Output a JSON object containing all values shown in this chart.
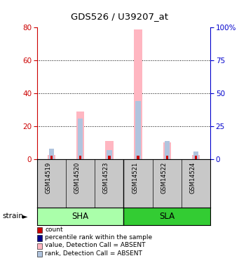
{
  "title": "GDS526 / U39207_at",
  "samples": [
    "GSM14519",
    "GSM14520",
    "GSM14523",
    "GSM14521",
    "GSM14522",
    "GSM14524"
  ],
  "value_absent": [
    2.5,
    29,
    11,
    79,
    10,
    2.5
  ],
  "rank_absent_pct": [
    8,
    31,
    7,
    44,
    14,
    6
  ],
  "count_val": [
    2.0,
    2.0,
    2.0,
    2.0,
    2.0,
    2.0
  ],
  "percentile_val": [
    0,
    0,
    0,
    0,
    0,
    0
  ],
  "left_ylim": [
    0,
    80
  ],
  "right_ylim": [
    0,
    100
  ],
  "left_yticks": [
    0,
    20,
    40,
    60,
    80
  ],
  "right_yticks": [
    0,
    25,
    50,
    75,
    100
  ],
  "right_yticklabels": [
    "0",
    "25",
    "50",
    "75",
    "100%"
  ],
  "value_color": "#FFB6C1",
  "rank_color": "#B0C4DE",
  "count_color": "#CC0000",
  "percentile_color": "#00008B",
  "left_axis_color": "#CC0000",
  "right_axis_color": "#0000CC",
  "sha_color": "#AAFFAA",
  "sla_color": "#33CC33",
  "label_bg": "#C8C8C8",
  "legend_items": [
    {
      "label": "count",
      "color": "#CC0000"
    },
    {
      "label": "percentile rank within the sample",
      "color": "#00008B"
    },
    {
      "label": "value, Detection Call = ABSENT",
      "color": "#FFB6C1"
    },
    {
      "label": "rank, Detection Call = ABSENT",
      "color": "#B0C4DE"
    }
  ]
}
